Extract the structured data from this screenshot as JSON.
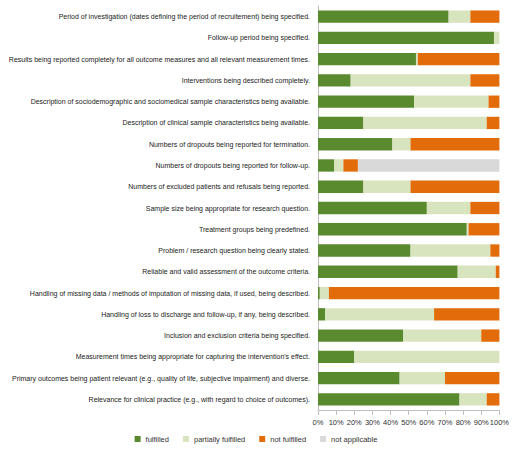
{
  "chart_data": {
    "type": "bar",
    "orientation": "horizontal",
    "stacked": true,
    "grid": false,
    "legend": "bottom",
    "data_labels": false,
    "categories": [
      "Period of investigation (dates defining the period of recruitement) being specified.",
      "Follow-up period being specified.",
      "Results being reported completely for all outcome measures and all relevant measurement times.",
      "Interventions being described completely.",
      "Description of sociodemographic and sociomedical sample characteristics being available.",
      "Description of clinical sample characteristics being available.",
      "Numbers of dropouts being reported for termination.",
      "Numbers of dropouts being reported for follow-up.",
      "Numbers of excluded patients and refusals being reported.",
      "Sample size being appropriate for research question.",
      "Treatment groups being predefined.",
      "Problem / research question being clearly stated.",
      "Reliable and valid assessment of the outcome criteria.",
      "Handling of missing data / methods of imputation of missing data, if used, being described.",
      "Handling of loss to discharge and follow-up, if any, being described.",
      "Inclusion and exclusion criteria being specified.",
      "Measurement times being appropriate for capturing the intervention's effect.",
      "Primary outcomes being patient relevant (e.g., quality of life, subjective impairment) and diverse.",
      "Relevance for clinical practice (e.g., with regard to choice of outcomes)."
    ],
    "series": [
      {
        "name": "fulfilled",
        "color": "#5a8a2e",
        "values": [
          72,
          97,
          54,
          18,
          53,
          25,
          41,
          9,
          25,
          60,
          82,
          51,
          77,
          1,
          4,
          47,
          20,
          45,
          78
        ]
      },
      {
        "name": "partially fulfilled",
        "color": "#d7e4bd",
        "values": [
          12,
          3,
          1,
          66,
          41,
          68,
          10,
          5,
          26,
          24,
          1,
          44,
          21,
          5,
          60,
          43,
          80,
          25,
          15
        ]
      },
      {
        "name": "not fulfilled",
        "color": "#e36c0a",
        "values": [
          16,
          0,
          45,
          16,
          6,
          7,
          49,
          8,
          49,
          16,
          17,
          5,
          2,
          94,
          36,
          10,
          0,
          30,
          7
        ]
      },
      {
        "name": "not applicable",
        "color": "#d9d9d9",
        "values": [
          0,
          0,
          0,
          0,
          0,
          0,
          0,
          78,
          0,
          0,
          0,
          0,
          0,
          0,
          0,
          0,
          0,
          0,
          0
        ]
      }
    ],
    "xlim": [
      0,
      100
    ],
    "xticks": [
      {
        "value": 0,
        "label": "0%"
      },
      {
        "value": 10,
        "label": "10%"
      },
      {
        "value": 20,
        "label": "20%"
      },
      {
        "value": 30,
        "label": "30%"
      },
      {
        "value": 40,
        "label": "40%"
      },
      {
        "value": 50,
        "label": "50%"
      },
      {
        "value": 60,
        "label": "60%"
      },
      {
        "value": 70,
        "label": "70%"
      },
      {
        "value": 80,
        "label": "80%"
      },
      {
        "value": 90,
        "label": "90%"
      },
      {
        "value": 100,
        "label": "100%"
      }
    ]
  }
}
